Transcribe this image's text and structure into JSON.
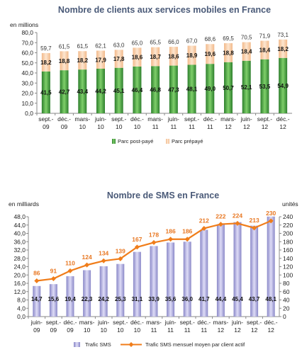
{
  "chart_data": [
    {
      "type": "bar",
      "stacked": true,
      "title": "Nombre de clients aux services mobiles en France",
      "ylabel": "en millions",
      "ylim": [
        0,
        80
      ],
      "yticks": [
        "0,0",
        "10,0",
        "20,0",
        "30,0",
        "40,0",
        "50,0",
        "60,0",
        "70,0",
        "80,0"
      ],
      "categories": [
        [
          "sept.-",
          "09"
        ],
        [
          "déc.-",
          "09"
        ],
        [
          "mars-",
          "10"
        ],
        [
          "juin-",
          "10"
        ],
        [
          "sept.-",
          "10"
        ],
        [
          "déc.-",
          "10"
        ],
        [
          "mars-",
          "11"
        ],
        [
          "juin-",
          "11"
        ],
        [
          "sept.-",
          "11"
        ],
        [
          "déc.-",
          "11"
        ],
        [
          "mars-",
          "12"
        ],
        [
          "juin-",
          "12"
        ],
        [
          "sept.-",
          "12"
        ],
        [
          "déc.-",
          "12"
        ]
      ],
      "series": [
        {
          "name": "Parc post-payé",
          "color": "#3a9a3a",
          "values": [
            41.5,
            42.7,
            43.4,
            44.2,
            45.1,
            46.4,
            46.8,
            47.3,
            48.1,
            49.0,
            50.7,
            52.1,
            53.5,
            54.9
          ],
          "labels": [
            "41,5",
            "42,7",
            "43,4",
            "44,2",
            "45,1",
            "46,4",
            "46,8",
            "47,3",
            "48,1",
            "49,0",
            "50,7",
            "52,1",
            "53,5",
            "54,9"
          ]
        },
        {
          "name": "Parc prépayé",
          "color": "#f7c9a0",
          "values": [
            18.2,
            18.8,
            18.2,
            17.9,
            17.8,
            18.6,
            18.7,
            18.6,
            18.9,
            19.6,
            18.8,
            18.4,
            18.4,
            18.2
          ],
          "labels": [
            "18,2",
            "18,8",
            "18,2",
            "17,9",
            "17,8",
            "18,6",
            "18,7",
            "18,6",
            "18,9",
            "19,6",
            "18,8",
            "18,4",
            "18,4",
            "18,2"
          ]
        }
      ],
      "totals": [
        "59,7",
        "61,5",
        "61,5",
        "62,1",
        "63,0",
        "65,0",
        "65,5",
        "66,0",
        "67,0",
        "68,6",
        "69,5",
        "70,5",
        "71,9",
        "73,1"
      ],
      "grid": false,
      "legend": "bottom"
    },
    {
      "type": "bar+line",
      "title": "Nombre de SMS en France",
      "ylabel": "en milliards",
      "y2label": "unités",
      "ylim": [
        0,
        48
      ],
      "y2lim": [
        0,
        240
      ],
      "yticks": [
        "0,0",
        "4,0",
        "8,0",
        "12,0",
        "16,0",
        "20,0",
        "24,0",
        "28,0",
        "32,0",
        "36,0",
        "40,0",
        "44,0",
        "48,0"
      ],
      "y2ticks": [
        "0",
        "20",
        "40",
        "60",
        "80",
        "100",
        "120",
        "140",
        "160",
        "180",
        "200",
        "220",
        "240"
      ],
      "categories": [
        [
          "juin-",
          "09"
        ],
        [
          "sept.-",
          "09"
        ],
        [
          "déc.-",
          "09"
        ],
        [
          "mars-",
          "10"
        ],
        [
          "juin-",
          "10"
        ],
        [
          "sept.-",
          "10"
        ],
        [
          "déc.-",
          "10"
        ],
        [
          "mars-",
          "11"
        ],
        [
          "juin-",
          "11"
        ],
        [
          "sept.-",
          "11"
        ],
        [
          "déc.-",
          "11"
        ],
        [
          "mars-",
          "12"
        ],
        [
          "juin-",
          "12"
        ],
        [
          "sept.-",
          "12"
        ],
        [
          "déc.-",
          "12"
        ]
      ],
      "bars": {
        "name": "Trafic SMS",
        "color": "#b0aee0",
        "values": [
          14.7,
          15.6,
          19.4,
          22.3,
          24.2,
          25.3,
          31.1,
          33.9,
          35.6,
          36.0,
          41.7,
          44.4,
          45.4,
          43.7,
          48.1
        ],
        "labels": [
          "14,7",
          "15,6",
          "19,4",
          "22,3",
          "24,2",
          "25,3",
          "31,1",
          "33,9",
          "35,6",
          "36,0",
          "41,7",
          "44,4",
          "45,4",
          "43,7",
          "48,1"
        ]
      },
      "line": {
        "name": "Trafic SMS mensuel moyen par client actif",
        "color": "#f07d1a",
        "values": [
          86,
          91,
          110,
          124,
          134,
          139,
          167,
          178,
          186,
          186,
          212,
          222,
          224,
          213,
          230
        ],
        "labels": [
          "86",
          "91",
          "110",
          "124",
          "134",
          "139",
          "167",
          "178",
          "186",
          "186",
          "212",
          "222",
          "224",
          "213",
          "230"
        ]
      },
      "grid": false,
      "legend": "bottom"
    }
  ]
}
